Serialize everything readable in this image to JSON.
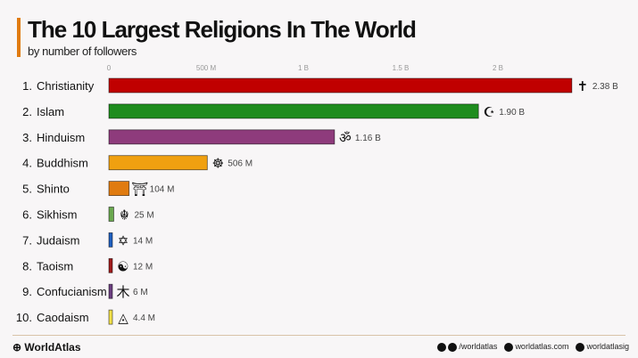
{
  "header": {
    "title": "The 10 Largest Religions In The World",
    "subtitle": "by number of followers"
  },
  "chart_data": {
    "type": "bar",
    "orientation": "horizontal",
    "title": "The 10 Largest Religions In The World",
    "subtitle": "by number of followers",
    "xlim": [
      0,
      2400000000
    ],
    "x_ticks": [
      {
        "value": 0,
        "label": "0"
      },
      {
        "value": 500000000,
        "label": "500 M"
      },
      {
        "value": 1000000000,
        "label": "1 B"
      },
      {
        "value": 1500000000,
        "label": "1.5 B"
      },
      {
        "value": 2000000000,
        "label": "2 B"
      }
    ],
    "categories": [
      "1. Christianity",
      "2. Islam",
      "3. Hinduism",
      "4. Buddhism",
      "5. Shinto",
      "6. Sikhism",
      "7. Judaism",
      "8. Taoism",
      "9. Confucianism",
      "10. Caodaism"
    ],
    "values": [
      2380000000,
      1900000000,
      1160000000,
      506000000,
      104000000,
      25000000,
      14000000,
      12000000,
      6000000,
      4400000
    ],
    "value_labels": [
      "2.38 B",
      "1.90 B",
      "1.16 B",
      "506 M",
      "104 M",
      "25 M",
      "14 M",
      "12 M",
      "6 M",
      "4.4 M"
    ],
    "icons": [
      "cross-icon",
      "crescent-star-icon",
      "om-icon",
      "dharma-wheel-icon",
      "torii-icon",
      "khanda-icon",
      "star-of-david-icon",
      "yin-yang-icon",
      "confucian-symbol-icon",
      "caodaism-eye-icon"
    ],
    "icon_glyphs": [
      "✝",
      "☪",
      "ॐ",
      "☸",
      "⛩",
      "☬",
      "✡",
      "☯",
      "木",
      "◬"
    ],
    "colors": [
      "#c00000",
      "#1e8c1e",
      "#8e3b7c",
      "#f0a010",
      "#e07b10",
      "#6aa84f",
      "#1f5fbf",
      "#a01c1c",
      "#6b3f80",
      "#f2e04a"
    ],
    "grid": false,
    "legend": "none"
  },
  "footer": {
    "brand": "WorldAtlas",
    "social_handle": "/worldatlas",
    "website": "worldatlas.com",
    "instagram": "worldatlasig"
  }
}
